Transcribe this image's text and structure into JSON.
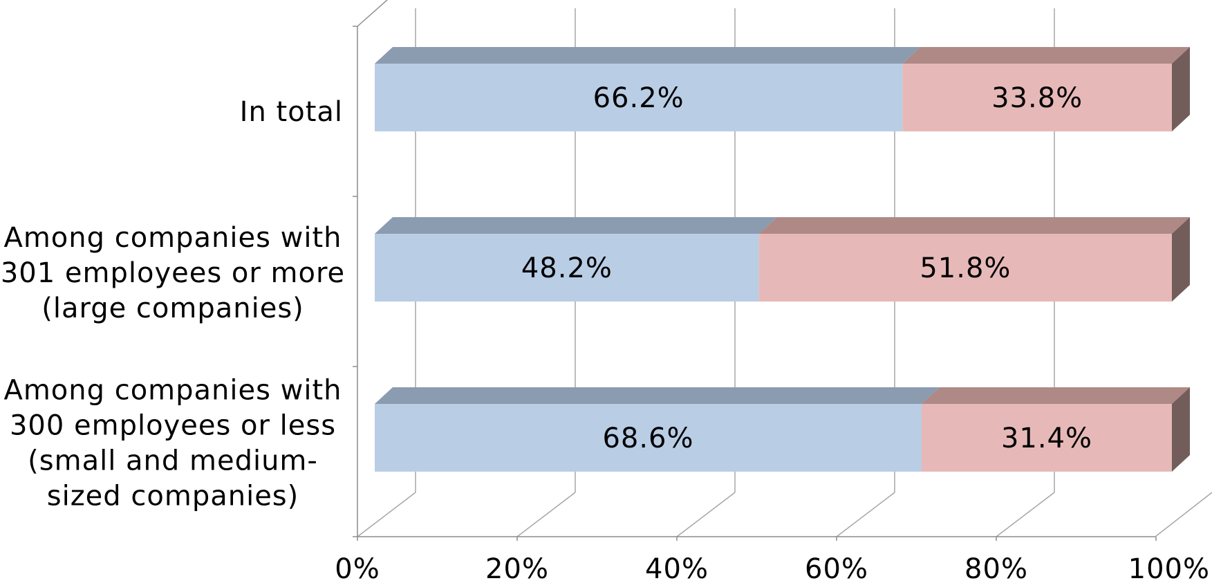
{
  "chart_data": {
    "type": "bar",
    "orientation": "horizontal",
    "stacked": true,
    "three_d": true,
    "categories": [
      [
        "In total"
      ],
      [
        "Among companies with",
        "301 employees or more",
        "(large companies)"
      ],
      [
        "Among companies with",
        "300 employees or less",
        "(small and medium-",
        "sized companies)"
      ]
    ],
    "series": [
      {
        "values": [
          66.2,
          48.2,
          68.6
        ],
        "labels": [
          "66.2%",
          "48.2%",
          "68.6%"
        ],
        "color": "#b9cde5",
        "top_color": "#8b9bb0",
        "side_color": "#7a8a9e"
      },
      {
        "values": [
          33.8,
          51.8,
          31.4
        ],
        "labels": [
          "33.8%",
          "51.8%",
          "31.4%"
        ],
        "color": "#e6b9b8",
        "top_color": "#ae8986",
        "side_color": "#735d5b"
      }
    ],
    "xlim": [
      0,
      100
    ],
    "x_ticks": [
      0,
      20,
      40,
      60,
      80,
      100
    ],
    "x_tick_labels": [
      "0%",
      "20%",
      "40%",
      "60%",
      "80%",
      "100%"
    ],
    "grid": true,
    "legend": "none"
  }
}
